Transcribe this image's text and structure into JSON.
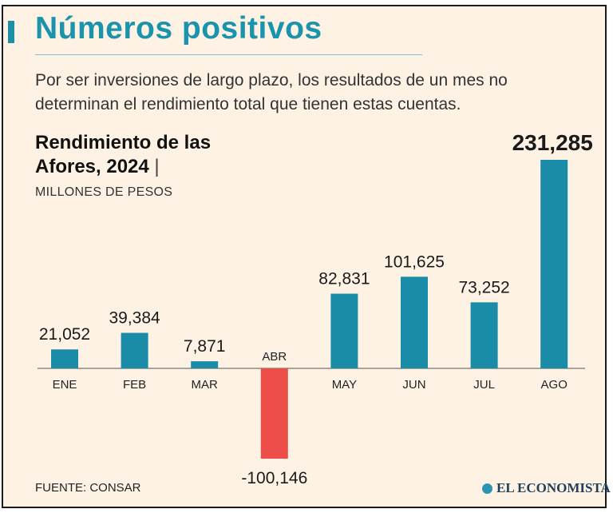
{
  "header": {
    "title": "Números positivos",
    "subtitle": "Por ser inversiones de largo plazo, los resultados de un mes no determinan el rendimiento total que tienen estas cuentas."
  },
  "chart_data": {
    "type": "bar",
    "title_line1": "Rendimiento de las",
    "title_line2": "Afores, 2024",
    "title_separator": "|",
    "ylabel": "MILLONES DE PESOS",
    "categories": [
      "ENE",
      "FEB",
      "MAR",
      "ABR",
      "MAY",
      "JUN",
      "JUL",
      "AGO"
    ],
    "values": [
      21052,
      39384,
      7871,
      -100146,
      82831,
      101625,
      73252,
      231285
    ],
    "value_labels": [
      "21,052",
      "39,384",
      "7,871",
      "-100,146",
      "82,831",
      "101,625",
      "73,252",
      "231,285"
    ],
    "highlight_label": "231,285",
    "colors": {
      "positive": "#1a8ca8",
      "negative": "#ee4e4a",
      "axis": "#555555"
    },
    "grid": false
  },
  "footer": {
    "source": "FUENTE: CONSAR",
    "brand": "EL ECONOMISTA",
    "brand_icon": "el-economista-logo-icon"
  }
}
